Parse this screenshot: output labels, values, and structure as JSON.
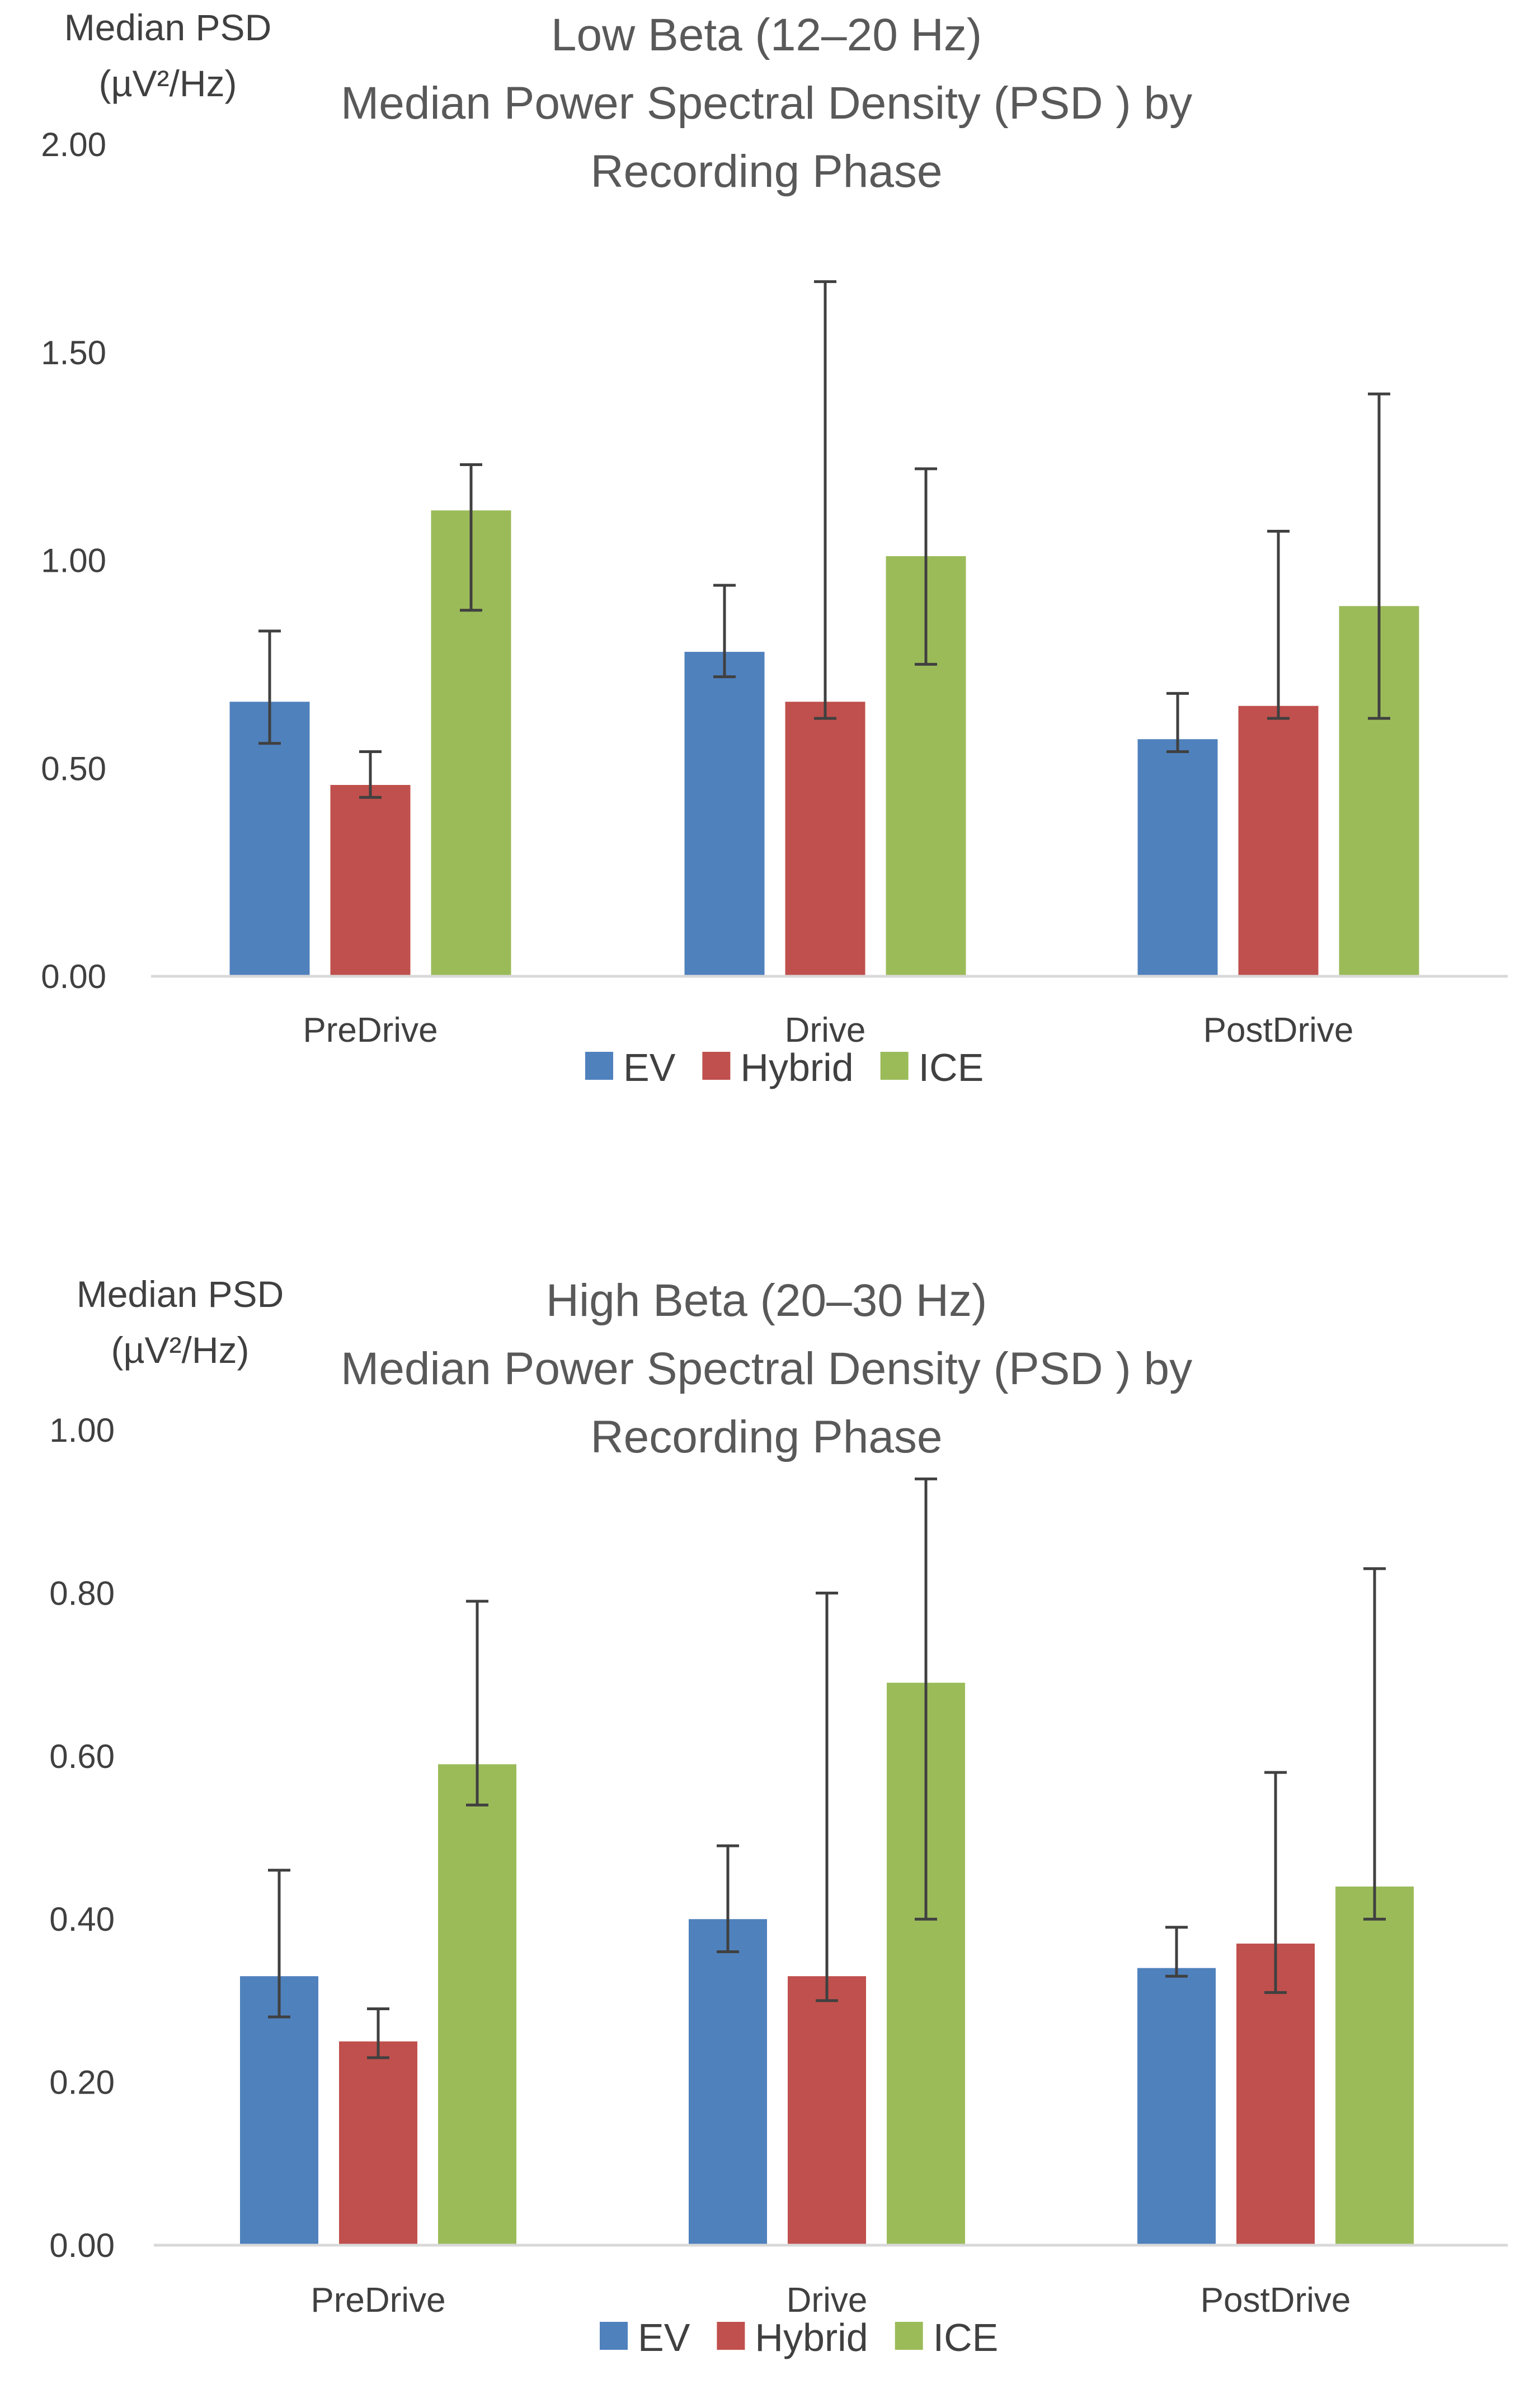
{
  "chart_data": [
    {
      "type": "bar",
      "title": "Low Beta (12–20 Hz)",
      "subtitle": "Median Power Spectral Density (PSD ) by Recording Phase",
      "ylabel": [
        "Median PSD",
        "(µV²/Hz)"
      ],
      "xlabel": "",
      "ylim": [
        0,
        2.0
      ],
      "yticks": [
        "0.00",
        "0.50",
        "1.00",
        "1.50",
        "2.00"
      ],
      "categories": [
        "PreDrive",
        "Drive",
        "PostDrive"
      ],
      "grid": false,
      "legend_position": "bottom",
      "series": [
        {
          "name": "EV",
          "color": "#4F81BD",
          "values": [
            0.66,
            0.78,
            0.57
          ],
          "err_low": [
            0.56,
            0.72,
            0.54
          ],
          "err_high": [
            0.83,
            0.94,
            0.68
          ]
        },
        {
          "name": "Hybrid",
          "color": "#C0504D",
          "values": [
            0.46,
            0.66,
            0.65
          ],
          "err_low": [
            0.43,
            0.62,
            0.62
          ],
          "err_high": [
            0.54,
            1.67,
            1.07
          ]
        },
        {
          "name": "ICE",
          "color": "#9BBB59",
          "values": [
            1.12,
            1.01,
            0.89
          ],
          "err_low": [
            0.88,
            0.75,
            0.62
          ],
          "err_high": [
            1.23,
            1.22,
            1.4
          ]
        }
      ]
    },
    {
      "type": "bar",
      "title": "High Beta (20–30 Hz)",
      "subtitle": "Median Power Spectral Density (PSD ) by Recording Phase",
      "ylabel": [
        "Median PSD",
        "(µV²/Hz)"
      ],
      "xlabel": "",
      "ylim": [
        0,
        1.0
      ],
      "yticks": [
        "0.00",
        "0.20",
        "0.40",
        "0.60",
        "0.80",
        "1.00"
      ],
      "categories": [
        "PreDrive",
        "Drive",
        "PostDrive"
      ],
      "grid": false,
      "legend_position": "bottom",
      "series": [
        {
          "name": "EV",
          "color": "#4F81BD",
          "values": [
            0.33,
            0.4,
            0.34
          ],
          "err_low": [
            0.28,
            0.36,
            0.33
          ],
          "err_high": [
            0.46,
            0.49,
            0.39
          ]
        },
        {
          "name": "Hybrid",
          "color": "#C0504D",
          "values": [
            0.25,
            0.33,
            0.37
          ],
          "err_low": [
            0.23,
            0.3,
            0.31
          ],
          "err_high": [
            0.29,
            0.8,
            0.58
          ]
        },
        {
          "name": "ICE",
          "color": "#9BBB59",
          "values": [
            0.59,
            0.69,
            0.44
          ],
          "err_low": [
            0.54,
            0.4,
            0.4
          ],
          "err_high": [
            0.79,
            0.94,
            0.83
          ]
        }
      ]
    }
  ]
}
